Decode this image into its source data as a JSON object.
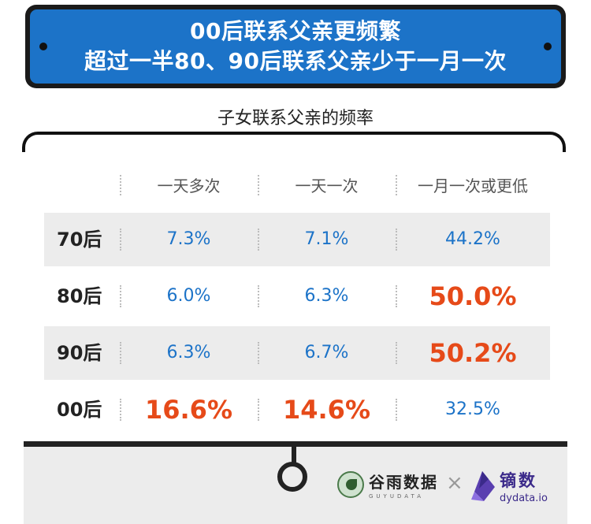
{
  "header": {
    "title_line1": "00后联系父亲更频繁",
    "title_line2": "超过一半80、90后联系父亲少于一月一次"
  },
  "chart_data": {
    "type": "table",
    "title": "子女联系父亲的频率",
    "columns": [
      "一天多次",
      "一天一次",
      "一月一次或更低"
    ],
    "rows": [
      {
        "label": "70后",
        "values": [
          "7.3%",
          "7.1%",
          "44.2%"
        ],
        "highlight": [
          false,
          false,
          false
        ]
      },
      {
        "label": "80后",
        "values": [
          "6.0%",
          "6.3%",
          "50.0%"
        ],
        "highlight": [
          false,
          false,
          true
        ]
      },
      {
        "label": "90后",
        "values": [
          "6.3%",
          "6.7%",
          "50.2%"
        ],
        "highlight": [
          false,
          false,
          true
        ]
      },
      {
        "label": "00后",
        "values": [
          "16.6%",
          "14.6%",
          "32.5%"
        ],
        "highlight": [
          true,
          true,
          false
        ]
      }
    ]
  },
  "colors": {
    "accent": "#1c73c8",
    "highlight": "#e64a19",
    "shade": "#ececec"
  },
  "footer": {
    "logo1_name": "谷雨数据",
    "logo1_en": "GUYUDATA",
    "separator": "×",
    "logo2_name": "镝数",
    "logo2_en": "dydata.io",
    "icons": [
      "bird-logo-icon",
      "shard-logo-icon"
    ]
  }
}
